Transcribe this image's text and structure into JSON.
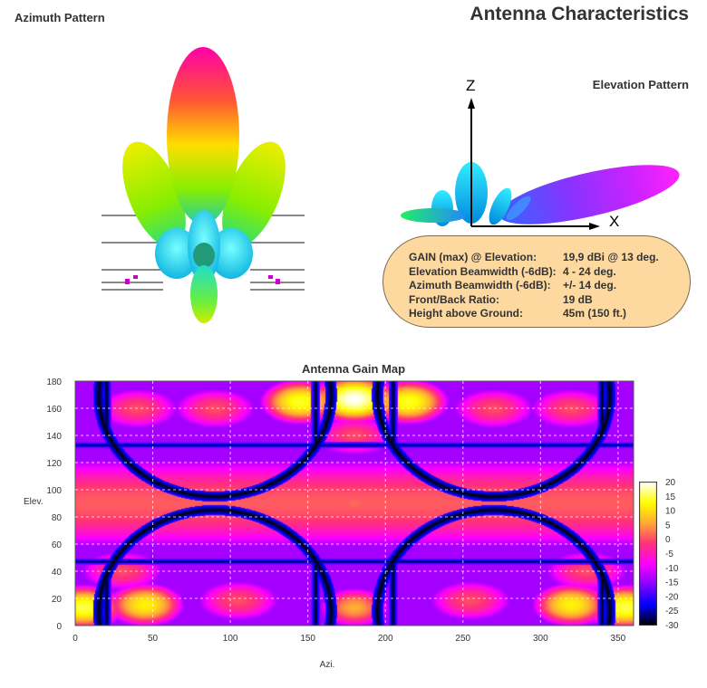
{
  "page": {
    "main_title": "Antenna Characteristics",
    "azimuth_title": "Azimuth Pattern",
    "elevation_title": "Elevation Pattern",
    "axis_z": "Z",
    "axis_x": "X"
  },
  "info": {
    "rows": [
      {
        "label": "GAIN (max) @ Elevation:",
        "value": "19,9 dBi @ 13 deg."
      },
      {
        "label": "Elevation Beamwidth (-6dB):",
        "value": "4 - 24 deg."
      },
      {
        "label": "Azimuth Beamwidth (-6dB):",
        "value": "+/- 14 deg."
      },
      {
        "label": "Front/Back Ratio:",
        "value": "19 dB"
      },
      {
        "label": "Height above Ground:",
        "value": "45m (150 ft.)"
      }
    ],
    "box_color": "#fdd9a0"
  },
  "chart_data": {
    "type": "heatmap",
    "title": "Antenna Gain Map",
    "xlabel": "Azi.",
    "ylabel": "Elev.",
    "xlim": [
      0,
      360
    ],
    "ylim": [
      0,
      180
    ],
    "xticks": [
      "0",
      "50",
      "100",
      "150",
      "200",
      "250",
      "300",
      "350"
    ],
    "yticks": [
      "0",
      "20",
      "40",
      "60",
      "80",
      "100",
      "120",
      "140",
      "160",
      "180"
    ],
    "colorbar_ticks": [
      "20",
      "15",
      "10",
      "5",
      "0",
      "-5",
      "-10",
      "-15",
      "-20",
      "-25",
      "-30"
    ],
    "colorbar_range": [
      -30,
      20
    ],
    "colormap": [
      "#000000",
      "#0000ff",
      "#8800ff",
      "#ff00ff",
      "#ff3377",
      "#ffaa33",
      "#ffff00",
      "#ffffff"
    ],
    "grid": true,
    "regions": [
      {
        "azimuth": 180,
        "elevation": 167,
        "gain_db": 20
      },
      {
        "azimuth": 145,
        "elevation": 165,
        "gain_db": 14
      },
      {
        "azimuth": 215,
        "elevation": 165,
        "gain_db": 14
      },
      {
        "azimuth": 180,
        "elevation": 13,
        "gain_db": 6
      },
      {
        "azimuth": 5,
        "elevation": 13,
        "gain_db": 15
      },
      {
        "azimuth": 355,
        "elevation": 13,
        "gain_db": 15
      },
      {
        "azimuth": 45,
        "elevation": 15,
        "gain_db": 12
      },
      {
        "azimuth": 320,
        "elevation": 15,
        "gain_db": 12
      },
      {
        "azimuth": 180,
        "elevation": 90,
        "gain_db": 2
      }
    ]
  }
}
